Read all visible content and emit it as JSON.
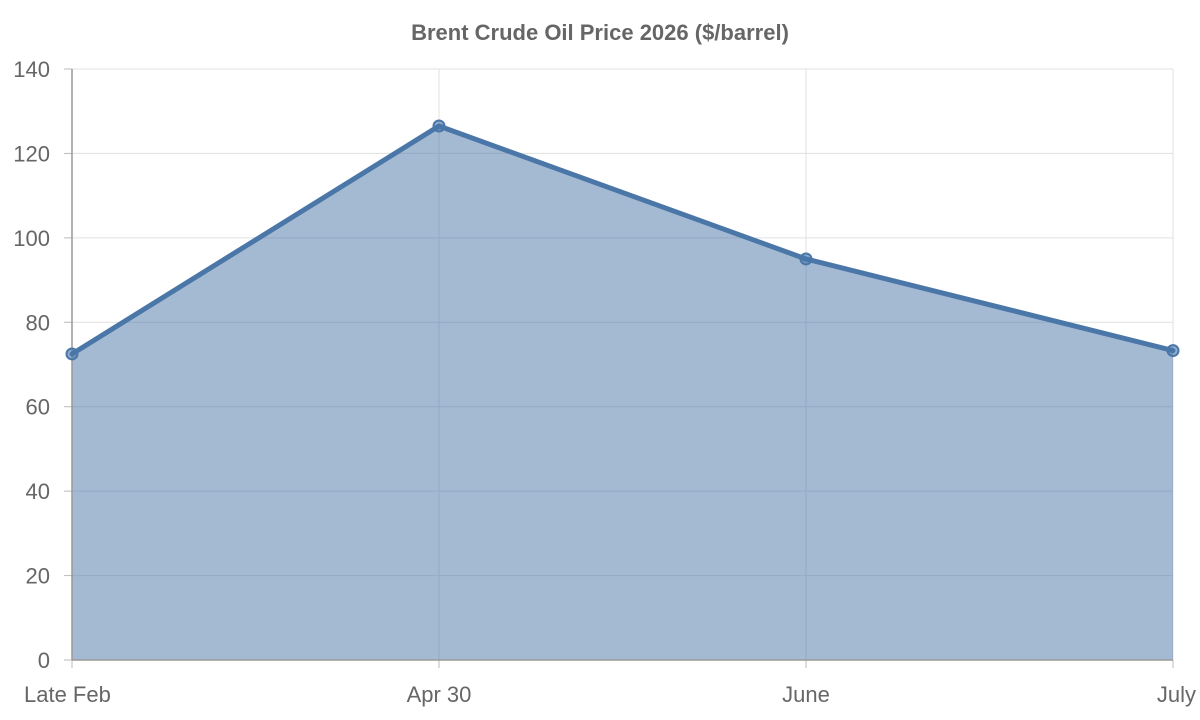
{
  "chart_data": {
    "type": "area",
    "title": "Brent Crude Oil Price 2026 ($/barrel)",
    "categories": [
      "Late Feb",
      "Apr 30",
      "June",
      "July"
    ],
    "series": [
      {
        "values": [
          72.5,
          126.5,
          95,
          73.3
        ],
        "color": "#4a76a8",
        "fill": "rgba(74,118,168,0.5)"
      }
    ],
    "xlabel": "",
    "ylabel": "",
    "ylim": [
      0,
      140
    ],
    "yticks": [
      "0",
      "20",
      "40",
      "60",
      "80",
      "100",
      "120",
      "140"
    ],
    "grid": true,
    "legend": false
  }
}
